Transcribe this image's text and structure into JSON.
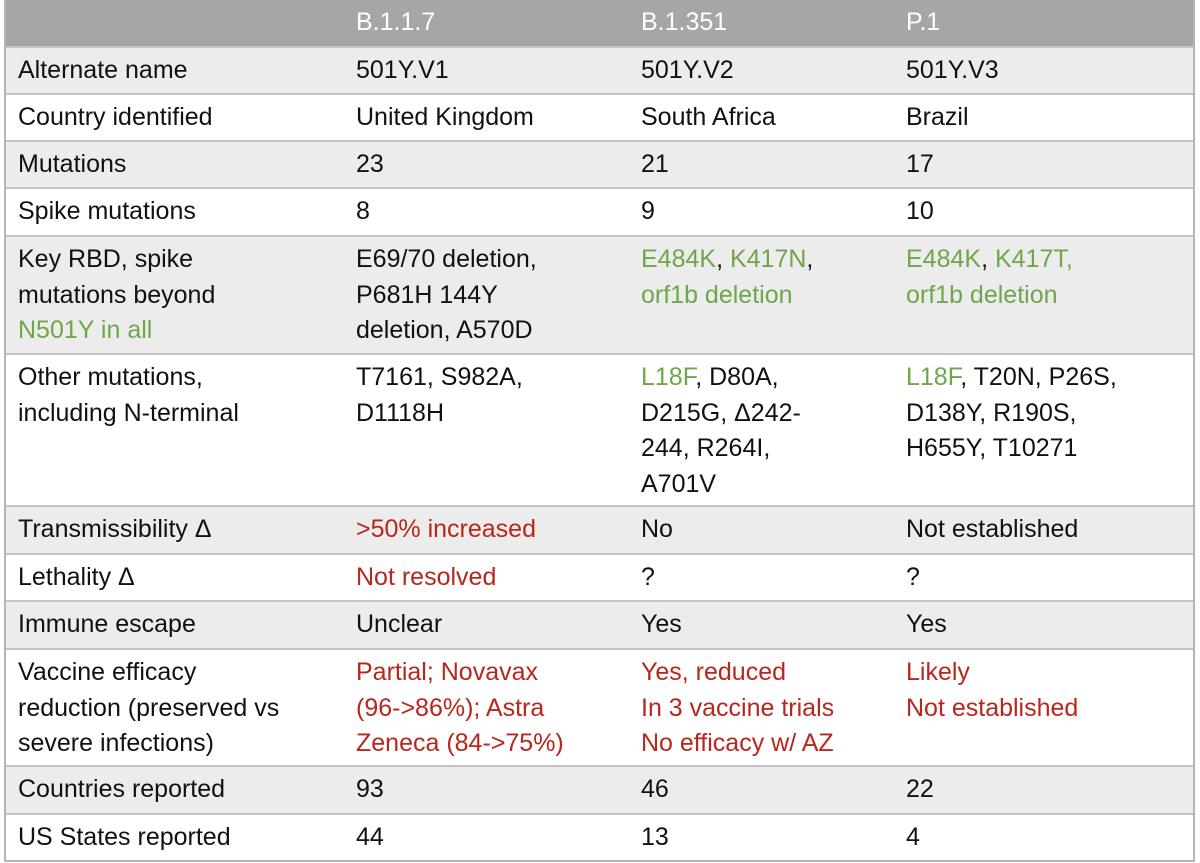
{
  "colors": {
    "header_bg": "#a6a6a6",
    "green": "#6fa64a",
    "red": "#b8261c",
    "row_gray": "#ececec"
  },
  "header": [
    "",
    "B.1.1.7",
    "B.1.351",
    "P.1"
  ],
  "rows": [
    {
      "shade": "gray",
      "cells": [
        [
          [
            {
              "t": "Alternate name"
            }
          ]
        ],
        [
          [
            {
              "t": "501Y.V1"
            }
          ]
        ],
        [
          [
            {
              "t": "501Y.V2"
            }
          ]
        ],
        [
          [
            {
              "t": "501Y.V3"
            }
          ]
        ]
      ]
    },
    {
      "shade": "white",
      "cells": [
        [
          [
            {
              "t": "Country identified"
            }
          ]
        ],
        [
          [
            {
              "t": "United Kingdom"
            }
          ]
        ],
        [
          [
            {
              "t": "South Africa"
            }
          ]
        ],
        [
          [
            {
              "t": "Brazil"
            }
          ]
        ]
      ]
    },
    {
      "shade": "gray",
      "cells": [
        [
          [
            {
              "t": "Mutations"
            }
          ]
        ],
        [
          [
            {
              "t": "23"
            }
          ]
        ],
        [
          [
            {
              "t": "21"
            }
          ]
        ],
        [
          [
            {
              "t": "17"
            }
          ]
        ]
      ]
    },
    {
      "shade": "white",
      "cells": [
        [
          [
            {
              "t": "Spike mutations"
            }
          ]
        ],
        [
          [
            {
              "t": "8"
            }
          ]
        ],
        [
          [
            {
              "t": "9"
            }
          ]
        ],
        [
          [
            {
              "t": "10"
            }
          ]
        ]
      ]
    },
    {
      "shade": "gray",
      "cells": [
        [
          [
            {
              "t": "Key RBD, spike"
            }
          ],
          [
            {
              "t": "mutations beyond"
            }
          ],
          [
            {
              "t": "N501Y in all",
              "c": "g"
            }
          ]
        ],
        [
          [
            {
              "t": "E69/70 deletion,"
            }
          ],
          [
            {
              "t": "P681H 144Y"
            }
          ],
          [
            {
              "t": "deletion, A570D"
            }
          ]
        ],
        [
          [
            {
              "t": "E484K",
              "c": "g"
            },
            {
              "t": ", "
            },
            {
              "t": "K417N",
              "c": "g"
            },
            {
              "t": ","
            }
          ],
          [
            {
              "t": "orf1b deletion",
              "c": "g"
            }
          ]
        ],
        [
          [
            {
              "t": "E484K",
              "c": "g"
            },
            {
              "t": ", "
            },
            {
              "t": "K417T,",
              "c": "g"
            }
          ],
          [
            {
              "t": "orf1b deletion",
              "c": "g"
            }
          ]
        ]
      ]
    },
    {
      "shade": "white",
      "cells": [
        [
          [
            {
              "t": "Other mutations,"
            }
          ],
          [
            {
              "t": "including N-terminal"
            }
          ]
        ],
        [
          [
            {
              "t": "T7161, S982A,"
            }
          ],
          [
            {
              "t": "D1118H"
            }
          ]
        ],
        [
          [
            {
              "t": "L18F",
              "c": "g"
            },
            {
              "t": ", D80A,"
            }
          ],
          [
            {
              "t": "D215G, Δ242-"
            }
          ],
          [
            {
              "t": "244, R264I,"
            }
          ],
          [
            {
              "t": "A701V"
            }
          ]
        ],
        [
          [
            {
              "t": "L18F",
              "c": "g"
            },
            {
              "t": ", T20N, P26S,"
            }
          ],
          [
            {
              "t": "D138Y, R190S,"
            }
          ],
          [
            {
              "t": "H655Y, T10271"
            }
          ]
        ]
      ]
    },
    {
      "shade": "gray",
      "cells": [
        [
          [
            {
              "t": "Transmissibility Δ"
            }
          ]
        ],
        [
          [
            {
              "t": ">50% increased",
              "c": "r"
            }
          ]
        ],
        [
          [
            {
              "t": "No"
            }
          ]
        ],
        [
          [
            {
              "t": "Not established"
            }
          ]
        ]
      ]
    },
    {
      "shade": "white",
      "cells": [
        [
          [
            {
              "t": "Lethality Δ"
            }
          ]
        ],
        [
          [
            {
              "t": "Not resolved",
              "c": "r"
            }
          ]
        ],
        [
          [
            {
              "t": "?"
            }
          ]
        ],
        [
          [
            {
              "t": "?"
            }
          ]
        ]
      ]
    },
    {
      "shade": "gray",
      "cells": [
        [
          [
            {
              "t": "Immune escape"
            }
          ]
        ],
        [
          [
            {
              "t": "Unclear"
            }
          ]
        ],
        [
          [
            {
              "t": "Yes"
            }
          ]
        ],
        [
          [
            {
              "t": "Yes"
            }
          ]
        ]
      ]
    },
    {
      "shade": "white",
      "cells": [
        [
          [
            {
              "t": "Vaccine efficacy"
            }
          ],
          [
            {
              "t": "reduction (preserved vs"
            }
          ],
          [
            {
              "t": "severe infections)"
            }
          ]
        ],
        [
          [
            {
              "t": "Partial; Novavax",
              "c": "r"
            }
          ],
          [
            {
              "t": "(96->86%); Astra",
              "c": "r"
            }
          ],
          [
            {
              "t": "Zeneca (84->75%)",
              "c": "r"
            }
          ]
        ],
        [
          [
            {
              "t": "Yes, reduced",
              "c": "r"
            }
          ],
          [
            {
              "t": "In 3 vaccine trials",
              "c": "r"
            }
          ],
          [
            {
              "t": "No efficacy w/ AZ",
              "c": "r"
            }
          ]
        ],
        [
          [
            {
              "t": "Likely",
              "c": "r"
            }
          ],
          [
            {
              "t": "Not established",
              "c": "r"
            }
          ]
        ]
      ]
    },
    {
      "shade": "gray",
      "cells": [
        [
          [
            {
              "t": "Countries reported"
            }
          ]
        ],
        [
          [
            {
              "t": "93"
            }
          ]
        ],
        [
          [
            {
              "t": "46"
            }
          ]
        ],
        [
          [
            {
              "t": "22"
            }
          ]
        ]
      ]
    },
    {
      "shade": "white",
      "cells": [
        [
          [
            {
              "t": "US States reported"
            }
          ]
        ],
        [
          [
            {
              "t": "44"
            }
          ]
        ],
        [
          [
            {
              "t": "13"
            }
          ]
        ],
        [
          [
            {
              "t": "4"
            }
          ]
        ]
      ]
    }
  ]
}
